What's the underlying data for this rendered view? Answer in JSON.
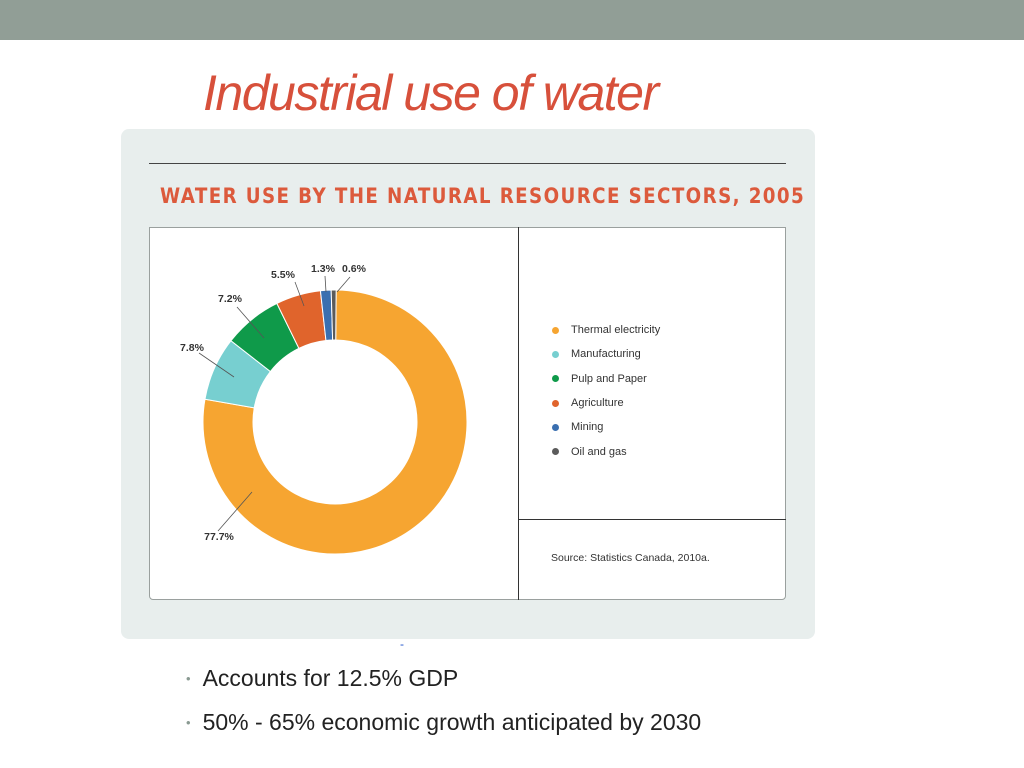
{
  "slide": {
    "title": "Industrial use of water",
    "bullets": [
      "Accounts for 12.5% GDP",
      "50% - 65% economic growth anticipated by 2030"
    ],
    "stray_mark": "-"
  },
  "chart_data": {
    "type": "pie",
    "donut": true,
    "title": "WATER USE BY THE NATURAL RESOURCE SECTORS, 2005",
    "source": "Source: Statistics Canada, 2010a.",
    "legend_position": "right",
    "slices": [
      {
        "name": "Thermal electricity",
        "value": 77.7,
        "label": "77.7%",
        "color": "#f6a531"
      },
      {
        "name": "Manufacturing",
        "value": 7.8,
        "label": "7.8%",
        "color": "#77cfd0"
      },
      {
        "name": "Pulp and Paper",
        "value": 7.2,
        "label": "7.2%",
        "color": "#0f9a4a"
      },
      {
        "name": "Agriculture",
        "value": 5.5,
        "label": "5.5%",
        "color": "#e0642c"
      },
      {
        "name": "Mining",
        "value": 1.3,
        "label": "1.3%",
        "color": "#3a6fb0"
      },
      {
        "name": "Oil and gas",
        "value": 0.6,
        "label": "0.6%",
        "color": "#5b5b5b"
      }
    ]
  }
}
